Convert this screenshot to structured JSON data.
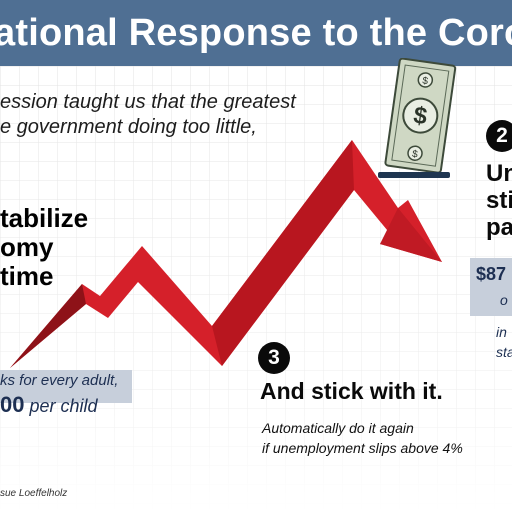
{
  "banner": {
    "title": "ational Response to the Coronav",
    "color": "#4f6f93"
  },
  "intro": {
    "line1": "ession taught us that the greatest",
    "line2": "e government doing too little,"
  },
  "step1": {
    "heading_lines": [
      "tabilize",
      "omy",
      "time"
    ],
    "box_line1": "ks for every adult,",
    "box_line2_amount": "00",
    "box_line2_rest": " per child"
  },
  "step2": {
    "badge": "2",
    "heading_lines": [
      "Un",
      "sti",
      "pa"
    ],
    "box_amount": "$87",
    "box_sub": "o",
    "note_lines": [
      "in",
      "sta"
    ]
  },
  "step3": {
    "badge": "3",
    "heading": "And stick with it.",
    "desc_line1": "Automatically do it again",
    "desc_line2": "if unemployment slips above 4%"
  },
  "credit": "sue Loeffelholz",
  "colors": {
    "arrow": "#d5202a",
    "arrow_dark": "#8e1218",
    "box": "#c7cfdb",
    "bill": "#cfd8c4"
  },
  "icons": {
    "arrow": "trend-arrow-icon",
    "bill": "dollar-bill-icon"
  }
}
